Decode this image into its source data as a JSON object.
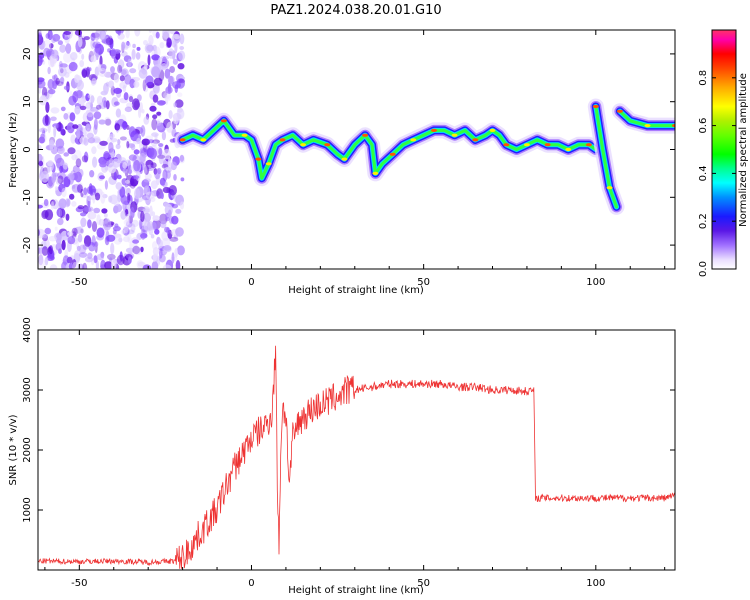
{
  "title": "PAZ1.2024.038.20.01.G10",
  "chart_data": [
    {
      "type": "heatmap",
      "xlabel": "Height of straight line (km)",
      "ylabel": "Frequency (Hz)",
      "xlim": [
        -62,
        123
      ],
      "ylim": [
        -25,
        25
      ],
      "xticks": [
        -50,
        0,
        50,
        100
      ],
      "yticks": [
        -20,
        -10,
        0,
        10,
        20
      ],
      "colorbar": {
        "label": "Normalized spectral amplitude",
        "range": [
          0.0,
          1.0
        ],
        "ticks": [
          "0.0",
          "0.2",
          "0.4",
          "0.6",
          "0.8"
        ],
        "colormap": "gist_ncar"
      },
      "ridge": {
        "description_x": [
          -20,
          -17,
          -14,
          -11,
          -8,
          -5,
          -2,
          0,
          2,
          3,
          5,
          7,
          9,
          12,
          15,
          18,
          22,
          25,
          27,
          30,
          33,
          35,
          36,
          38,
          41,
          44,
          47,
          50,
          53,
          56,
          59,
          62,
          65,
          68,
          70,
          72,
          74,
          77,
          80,
          83,
          86,
          89,
          92,
          95,
          98,
          100
        ],
        "frequency_hz": [
          2,
          3,
          2,
          4,
          6,
          3,
          3,
          2,
          -2,
          -6,
          -3,
          1,
          2,
          3,
          1,
          2,
          1,
          -1,
          -2,
          1,
          3,
          1,
          -5,
          -3,
          -1,
          1,
          2,
          3,
          4,
          4,
          3,
          4,
          2,
          3,
          4,
          3,
          1,
          0,
          1,
          2,
          1,
          1,
          0,
          1,
          1,
          0
        ]
      },
      "secondary_ridge": {
        "x": [
          100,
          102,
          104,
          106
        ],
        "frequency_hz": [
          9,
          0,
          -8,
          -12
        ]
      },
      "upper_segment": {
        "x": [
          107,
          110,
          115,
          120,
          123
        ],
        "frequency_hz": [
          8,
          6,
          5,
          5,
          5
        ]
      },
      "noise_region_x": [
        -62,
        -20
      ]
    },
    {
      "type": "line",
      "xlabel": "Height of straight line (km)",
      "ylabel": "SNR (10 * v/v)",
      "xlim": [
        -62,
        123
      ],
      "ylim": [
        0,
        4000
      ],
      "xticks": [
        -50,
        0,
        50,
        100
      ],
      "yticks": [
        1000,
        2000,
        3000,
        4000
      ],
      "color": "#ee3333",
      "series": [
        {
          "x": [
            -62,
            -50,
            -40,
            -30,
            -22,
            -20,
            -18,
            -15,
            -12,
            -10,
            -8,
            -5,
            -3,
            -1,
            0,
            2,
            4,
            5,
            6,
            7,
            7.5,
            8,
            8.5,
            9,
            10,
            11,
            12,
            14,
            16,
            18,
            20,
            22,
            25,
            28,
            30,
            35,
            40,
            45,
            50,
            55,
            60,
            65,
            70,
            75,
            80,
            82,
            82.5,
            83,
            90,
            100,
            110,
            120,
            123
          ],
          "y": [
            150,
            140,
            150,
            130,
            150,
            200,
            350,
            600,
            850,
            1000,
            1300,
            1700,
            1900,
            2100,
            2200,
            2300,
            2400,
            2500,
            2600,
            3700,
            1500,
            400,
            2000,
            2700,
            2600,
            1400,
            2200,
            2500,
            2600,
            2700,
            2750,
            2800,
            2900,
            3000,
            3000,
            3050,
            3100,
            3100,
            3100,
            3100,
            3050,
            3050,
            3000,
            3000,
            2980,
            3000,
            1150,
            1200,
            1200,
            1200,
            1200,
            1200,
            1250
          ]
        }
      ]
    }
  ]
}
